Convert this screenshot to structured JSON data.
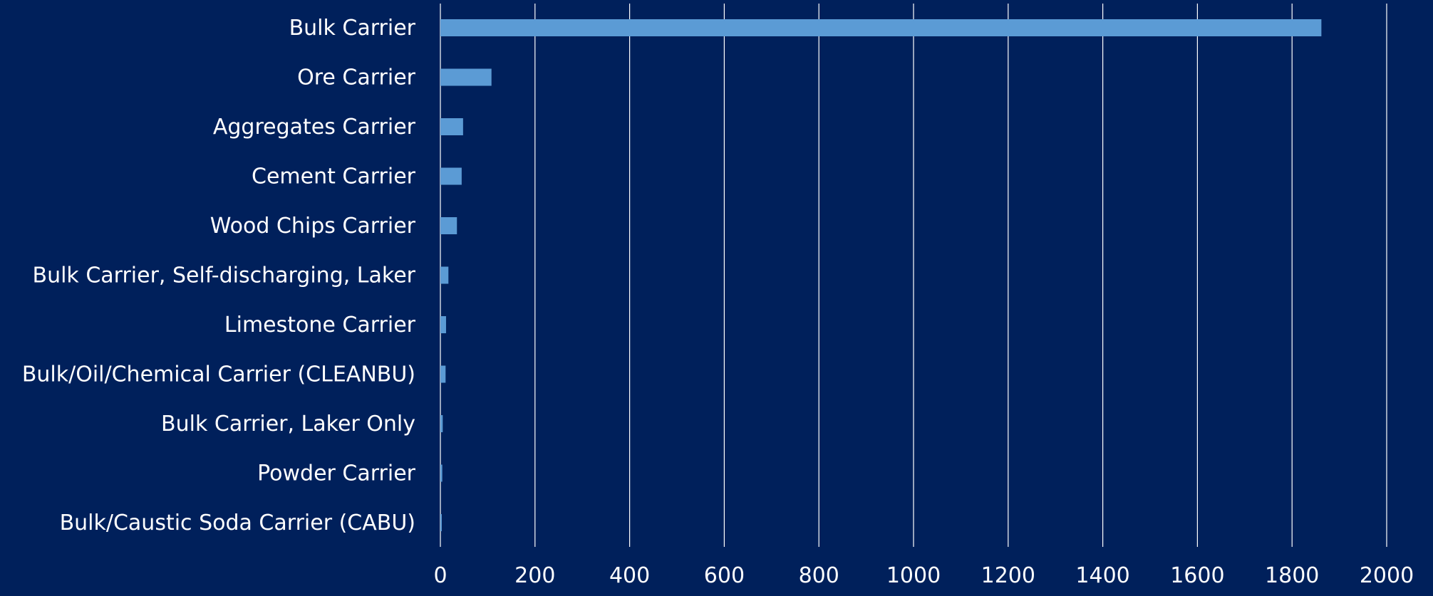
{
  "chart_data": {
    "type": "bar",
    "orientation": "horizontal",
    "categories": [
      "Bulk Carrier",
      "Ore Carrier",
      "Aggregates Carrier",
      "Cement Carrier",
      "Wood Chips Carrier",
      "Bulk Carrier, Self-discharging, Laker",
      "Limestone Carrier",
      "Bulk/Oil/Chemical Carrier (CLEANBU)",
      "Bulk Carrier, Laker Only",
      "Powder Carrier",
      "Bulk/Caustic Soda Carrier (CABU)"
    ],
    "values": [
      1862,
      108,
      48,
      45,
      35,
      17,
      12,
      11,
      5,
      4,
      3
    ],
    "xlim": [
      0,
      2000
    ],
    "xticks": [
      "0",
      "200",
      "400",
      "600",
      "800",
      "1000",
      "1200",
      "1400",
      "1600",
      "1800",
      "2000"
    ],
    "title": "",
    "xlabel": "",
    "ylabel": "",
    "grid": "vertical",
    "legend": "none",
    "colors": {
      "background": "#00205b",
      "bar": "#5b9bd5",
      "gridline": "#ffffff",
      "text": "#ffffff"
    }
  }
}
